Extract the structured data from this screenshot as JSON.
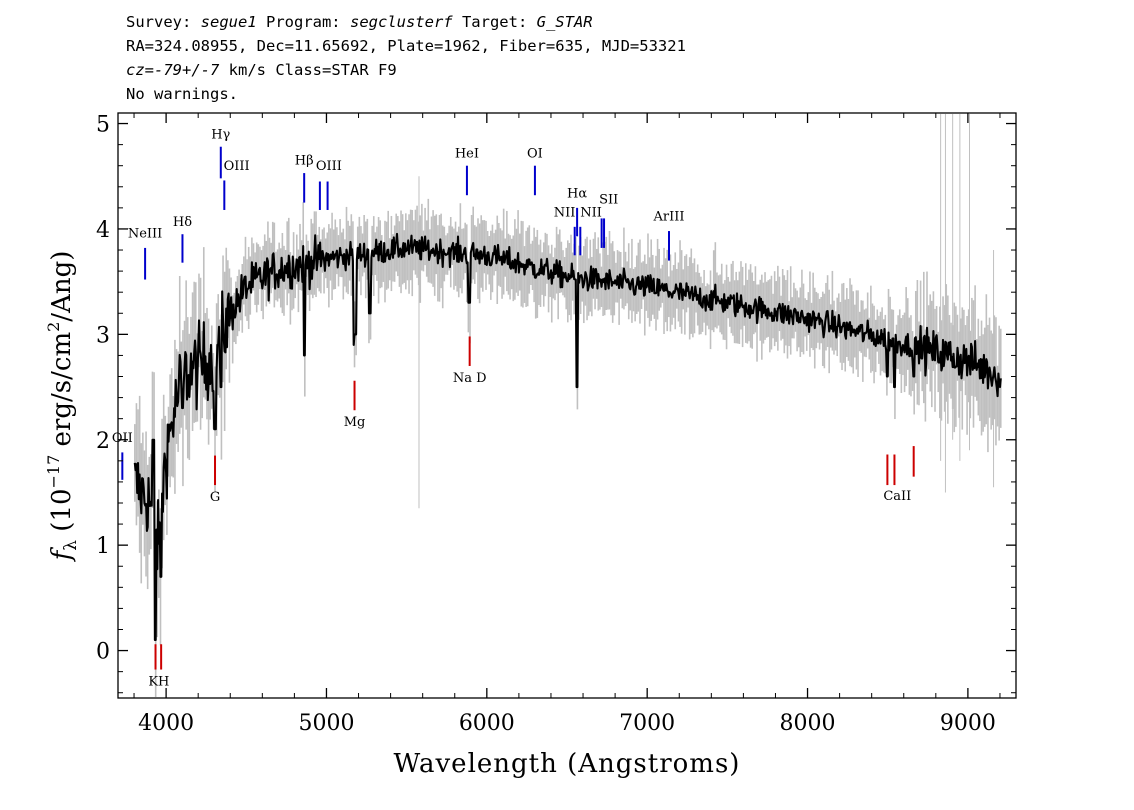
{
  "header": {
    "l1_p1": "Survey: ",
    "survey": "segue1",
    "l1_p2": " Program: ",
    "program": "segclusterf",
    "l1_p3": " Target: ",
    "target": "G_STAR",
    "l2": "RA=324.08955, Dec=11.65692, Plate=1962, Fiber=635, MJD=53321",
    "cz": "cz",
    "l3_p1": "=",
    "cz_value": "-79+/-7",
    "l3_p2": " km/s Class=STAR F9",
    "l4": "No warnings."
  },
  "chart_data": {
    "type": "line",
    "xlabel": "Wavelength (Angstroms)",
    "ylabel": "fλ (10^-17 erg/s/cm^2/Ang)",
    "ylabel_parts": {
      "f": "f",
      "sub": "λ",
      "a": " (10",
      "exp1": "−17",
      "b": " erg/s/cm",
      "exp2": "2",
      "c": "/Ang)"
    },
    "xlim": [
      3700,
      9300
    ],
    "ylim": [
      -0.45,
      5.1
    ],
    "xticks": [
      4000,
      5000,
      6000,
      7000,
      8000,
      9000
    ],
    "yticks": [
      0,
      1,
      2,
      3,
      4,
      5
    ],
    "colors": {
      "flux": "#000000",
      "noise": "#c0c0c0",
      "emission": "#0000cc",
      "absorption": "#cc0000",
      "axis": "#000000"
    },
    "continuum_x": [
      3800,
      3850,
      3900,
      3950,
      4000,
      4100,
      4200,
      4300,
      4400,
      4500,
      4700,
      5000,
      5500,
      6000,
      6500,
      7000,
      7500,
      8000,
      8500,
      9000,
      9200
    ],
    "continuum_y": [
      1.6,
      1.5,
      1.4,
      1.0,
      1.9,
      2.6,
      2.7,
      2.8,
      3.2,
      3.45,
      3.62,
      3.72,
      3.82,
      3.75,
      3.55,
      3.45,
      3.3,
      3.15,
      2.95,
      2.75,
      2.6
    ],
    "features": [
      {
        "x": 3920,
        "y": 2.0
      },
      {
        "x": 3933,
        "y": 0.1
      },
      {
        "x": 3968,
        "y": 0.7
      },
      {
        "x": 4102,
        "y": 2.3
      },
      {
        "x": 4305,
        "y": 2.1
      },
      {
        "x": 4341,
        "y": 2.5
      },
      {
        "x": 4861,
        "y": 2.8
      },
      {
        "x": 5175,
        "y": 2.9
      },
      {
        "x": 5180,
        "y": 3.0
      },
      {
        "x": 5270,
        "y": 3.2
      },
      {
        "x": 5890,
        "y": 3.3
      },
      {
        "x": 6563,
        "y": 2.5
      },
      {
        "x": 8498,
        "y": 2.6
      },
      {
        "x": 8542,
        "y": 2.5
      },
      {
        "x": 8662,
        "y": 2.6
      }
    ],
    "lines": [
      {
        "label": "OII",
        "wl": 3727,
        "type": "emission",
        "y0": 1.62,
        "y1": 1.88,
        "lx": 3727,
        "ly": 1.98
      },
      {
        "label": "NeIII",
        "wl": 3869,
        "type": "emission",
        "y0": 3.52,
        "y1": 3.82,
        "lx": 3869,
        "ly": 3.92
      },
      {
        "label": "K",
        "wl": 3934,
        "type": "absorption",
        "y0": -0.18,
        "y1": 0.06,
        "lx": 3920,
        "ly": -0.33
      },
      {
        "label": "H",
        "wl": 3969,
        "type": "absorption",
        "y0": -0.18,
        "y1": 0.06,
        "lx": 3985,
        "ly": -0.33
      },
      {
        "label": "Hδ",
        "wl": 4102,
        "type": "emission",
        "y0": 3.68,
        "y1": 3.95,
        "lx": 4102,
        "ly": 4.03
      },
      {
        "label": "G",
        "wl": 4305,
        "type": "absorption",
        "y0": 1.57,
        "y1": 1.85,
        "lx": 4305,
        "ly": 1.42
      },
      {
        "label": "Hγ",
        "wl": 4341,
        "type": "emission",
        "y0": 4.48,
        "y1": 4.78,
        "lx": 4341,
        "ly": 4.86
      },
      {
        "label": "OIII",
        "wl": 4363,
        "type": "emission",
        "y0": 4.18,
        "y1": 4.46,
        "lx": 4440,
        "ly": 4.56
      },
      {
        "label": "Hβ",
        "wl": 4861,
        "type": "emission",
        "y0": 4.25,
        "y1": 4.53,
        "lx": 4861,
        "ly": 4.61
      },
      {
        "label": "OIII",
        "wl": 4959,
        "type": "emission",
        "y0": 4.18,
        "y1": 4.45,
        "lx": 5015,
        "ly": 4.56
      },
      {
        "label": "OIII",
        "wl": 5007,
        "type": "emission",
        "y0": 4.18,
        "y1": 4.45,
        "lx": null,
        "ly": null
      },
      {
        "label": "Mg",
        "wl": 5175,
        "type": "absorption",
        "y0": 2.28,
        "y1": 2.56,
        "lx": 5175,
        "ly": 2.13
      },
      {
        "label": "HeI",
        "wl": 5876,
        "type": "emission",
        "y0": 4.32,
        "y1": 4.6,
        "lx": 5876,
        "ly": 4.68
      },
      {
        "label": "Na D",
        "wl": 5893,
        "type": "absorption",
        "y0": 2.7,
        "y1": 2.98,
        "lx": 5893,
        "ly": 2.55
      },
      {
        "label": "OI",
        "wl": 6300,
        "type": "emission",
        "y0": 4.32,
        "y1": 4.6,
        "lx": 6300,
        "ly": 4.68
      },
      {
        "label": "NII",
        "wl": 6548,
        "type": "emission",
        "y0": 3.75,
        "y1": 4.02,
        "lx": 6485,
        "ly": 4.12
      },
      {
        "label": "Hα",
        "wl": 6563,
        "type": "emission",
        "y0": 3.93,
        "y1": 4.2,
        "lx": 6563,
        "ly": 4.3
      },
      {
        "label": "NII",
        "wl": 6583,
        "type": "emission",
        "y0": 3.75,
        "y1": 4.02,
        "lx": 6650,
        "ly": 4.12
      },
      {
        "label": "SII",
        "wl": 6716,
        "type": "emission",
        "y0": 3.82,
        "y1": 4.1,
        "lx": 6760,
        "ly": 4.24
      },
      {
        "label": "SII",
        "wl": 6731,
        "type": "emission",
        "y0": 3.82,
        "y1": 4.1,
        "lx": null,
        "ly": null
      },
      {
        "label": "ArIII",
        "wl": 7136,
        "type": "emission",
        "y0": 3.7,
        "y1": 3.98,
        "lx": 7136,
        "ly": 4.08
      },
      {
        "label": "CaII",
        "wl": 8498,
        "type": "absorption",
        "y0": 1.57,
        "y1": 1.86,
        "lx": 8560,
        "ly": 1.43
      },
      {
        "label": "CaII",
        "wl": 8542,
        "type": "absorption",
        "y0": 1.57,
        "y1": 1.86,
        "lx": null,
        "ly": null
      },
      {
        "label": "CaII",
        "wl": 8662,
        "type": "absorption",
        "y0": 1.65,
        "y1": 1.94,
        "lx": null,
        "ly": null
      }
    ],
    "noise_spikes": [
      {
        "x": 5577,
        "y0": 1.35,
        "y1": 4.5
      },
      {
        "x": 8830,
        "y0": 1.8,
        "y1": 5.1
      },
      {
        "x": 8860,
        "y0": 1.5,
        "y1": 5.1
      },
      {
        "x": 8905,
        "y0": 2.0,
        "y1": 5.1
      },
      {
        "x": 8950,
        "y0": 1.8,
        "y1": 5.1
      },
      {
        "x": 9010,
        "y0": 1.9,
        "y1": 5.1
      },
      {
        "x": 9160,
        "y0": 1.55,
        "y1": 3.8
      }
    ]
  }
}
